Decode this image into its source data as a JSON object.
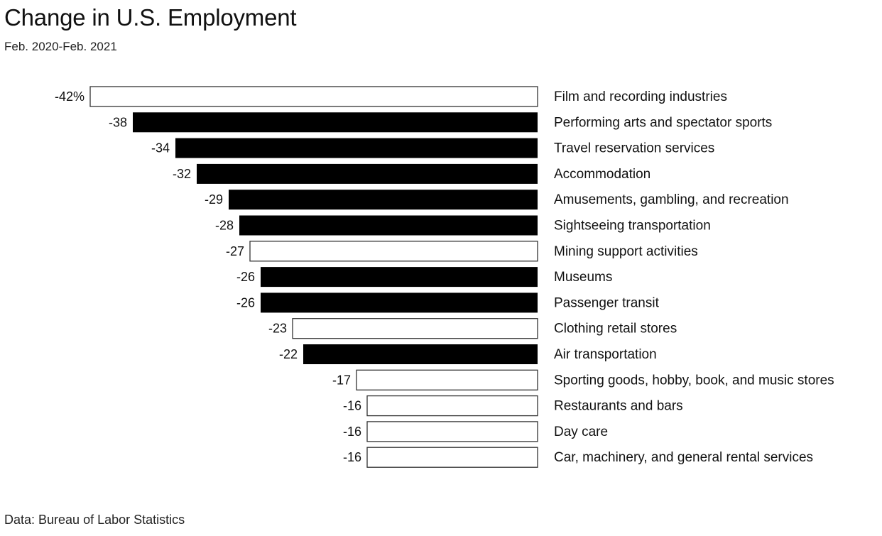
{
  "title": "Change in U.S. Employment",
  "subtitle": "Feb. 2020-Feb. 2021",
  "source": "Data: Bureau of Labor Statistics",
  "colors": {
    "highlight": "#000000",
    "neutral": "#ffffff",
    "outline": "#333333",
    "text": "#111111"
  },
  "chart_data": {
    "type": "bar",
    "orientation": "horizontal",
    "unit": "%",
    "categories": [
      "Film and recording industries",
      "Performing arts and spectator sports",
      "Travel reservation services",
      "Accommodation",
      "Amusements, gambling, and recreation",
      "Sightseeing transportation",
      "Mining support activities",
      "Museums",
      "Passenger transit",
      "Clothing retail stores",
      "Air transportation",
      "Sporting goods, hobby, book, and music stores",
      "Restaurants and bars",
      "Day care",
      "Car, machinery, and general rental services"
    ],
    "values": [
      -42,
      -38,
      -34,
      -32,
      -29,
      -28,
      -27,
      -26,
      -26,
      -23,
      -22,
      -17,
      -16,
      -16,
      -16
    ],
    "value_labels": [
      "-42%",
      "-38",
      "-34",
      "-32",
      "-29",
      "-28",
      "-27",
      "-26",
      "-26",
      "-23",
      "-22",
      "-17",
      "-16",
      "-16",
      "-16"
    ],
    "highlighted": [
      false,
      true,
      true,
      true,
      true,
      true,
      false,
      true,
      true,
      false,
      true,
      false,
      false,
      false,
      false
    ],
    "xlim": [
      -42,
      0
    ],
    "grid": false,
    "legend": "none"
  }
}
